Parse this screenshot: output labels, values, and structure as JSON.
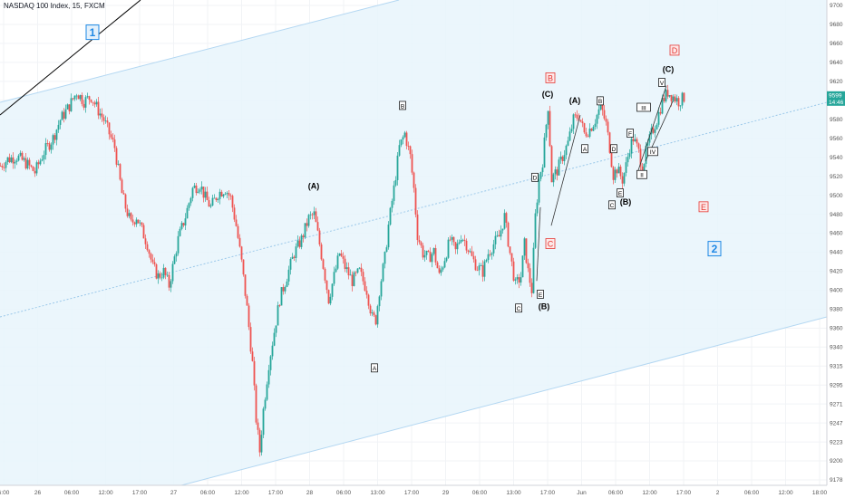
{
  "chart_data": {
    "type": "candlestick",
    "title": "NASDAQ 100 Index, 15, FXCM",
    "colors": {
      "up": "#26a69a",
      "down": "#ef5350",
      "wick_up": "#26a69a",
      "wick_down": "#ef5350",
      "channel_fill": "#e8f4fc",
      "channel_line": "#b3d7f2",
      "midline": "#9cc9ea",
      "trend_line": "#000000",
      "label_red": "#e53935",
      "label_blue": "#1e88e5",
      "price_tag": "#26a69a"
    },
    "ylim": [
      9178,
      9705
    ],
    "y_ticks": [
      "9700",
      "9680",
      "9660",
      "9640",
      "9620",
      "9600",
      "9580",
      "9560",
      "9540",
      "9520",
      "9500",
      "9480",
      "9460",
      "9440",
      "9420",
      "9400",
      "9380",
      "9360",
      "9340",
      "9315",
      "9295",
      "9271",
      "9247",
      "9223",
      "9200",
      "9178"
    ],
    "x_ticks": [
      "6:00",
      "26",
      "06:00",
      "12:00",
      "17:00",
      "27",
      "06:00",
      "12:00",
      "17:00",
      "28",
      "06:00",
      "13:00",
      "17:00",
      "29",
      "06:00",
      "13:00",
      "17:00",
      "Jun",
      "06:00",
      "12:00",
      "17:00",
      "2",
      "06:00",
      "12:00",
      "18:00"
    ],
    "price_tag": {
      "value": "9599",
      "time_left": "14:46"
    },
    "close_path": [
      [
        0,
        9525
      ],
      [
        8,
        9532
      ],
      [
        18,
        9535
      ],
      [
        28,
        9528
      ],
      [
        38,
        9518
      ],
      [
        48,
        9540
      ],
      [
        58,
        9555
      ],
      [
        66,
        9575
      ],
      [
        76,
        9590
      ],
      [
        84,
        9605
      ],
      [
        92,
        9595
      ],
      [
        100,
        9600
      ],
      [
        108,
        9585
      ],
      [
        114,
        9575
      ],
      [
        120,
        9560
      ],
      [
        126,
        9545
      ],
      [
        130,
        9520
      ],
      [
        134,
        9495
      ],
      [
        138,
        9480
      ],
      [
        144,
        9462
      ],
      [
        150,
        9470
      ],
      [
        156,
        9455
      ],
      [
        162,
        9440
      ],
      [
        168,
        9415
      ],
      [
        174,
        9405
      ],
      [
        180,
        9410
      ],
      [
        186,
        9395
      ],
      [
        190,
        9415
      ],
      [
        196,
        9445
      ],
      [
        204,
        9470
      ],
      [
        212,
        9500
      ],
      [
        220,
        9505
      ],
      [
        226,
        9490
      ],
      [
        232,
        9480
      ],
      [
        240,
        9495
      ],
      [
        248,
        9500
      ],
      [
        254,
        9490
      ],
      [
        260,
        9460
      ],
      [
        266,
        9420
      ],
      [
        272,
        9370
      ],
      [
        278,
        9310
      ],
      [
        282,
        9250
      ],
      [
        286,
        9215
      ],
      [
        290,
        9260
      ],
      [
        296,
        9310
      ],
      [
        302,
        9345
      ],
      [
        308,
        9380
      ],
      [
        316,
        9405
      ],
      [
        324,
        9430
      ],
      [
        332,
        9445
      ],
      [
        340,
        9468
      ],
      [
        346,
        9472
      ],
      [
        352,
        9440
      ],
      [
        358,
        9405
      ],
      [
        362,
        9380
      ],
      [
        368,
        9405
      ],
      [
        374,
        9430
      ],
      [
        380,
        9415
      ],
      [
        388,
        9400
      ],
      [
        396,
        9410
      ],
      [
        404,
        9390
      ],
      [
        410,
        9360
      ],
      [
        414,
        9358
      ],
      [
        418,
        9390
      ],
      [
        424,
        9425
      ],
      [
        428,
        9460
      ],
      [
        434,
        9500
      ],
      [
        440,
        9545
      ],
      [
        446,
        9560
      ],
      [
        452,
        9535
      ],
      [
        456,
        9500
      ],
      [
        460,
        9450
      ],
      [
        466,
        9430
      ],
      [
        472,
        9425
      ],
      [
        478,
        9432
      ],
      [
        484,
        9405
      ],
      [
        490,
        9425
      ],
      [
        496,
        9445
      ],
      [
        502,
        9432
      ],
      [
        508,
        9450
      ],
      [
        514,
        9440
      ],
      [
        520,
        9425
      ],
      [
        526,
        9415
      ],
      [
        532,
        9410
      ],
      [
        538,
        9430
      ],
      [
        544,
        9440
      ],
      [
        550,
        9448
      ],
      [
        556,
        9470
      ],
      [
        562,
        9430
      ],
      [
        568,
        9395
      ],
      [
        574,
        9405
      ],
      [
        578,
        9440
      ],
      [
        582,
        9410
      ],
      [
        586,
        9390
      ],
      [
        590,
        9470
      ],
      [
        594,
        9510
      ],
      [
        598,
        9530
      ],
      [
        604,
        9590
      ],
      [
        608,
        9510
      ],
      [
        614,
        9520
      ],
      [
        620,
        9535
      ],
      [
        626,
        9550
      ],
      [
        632,
        9575
      ],
      [
        638,
        9580
      ],
      [
        644,
        9560
      ],
      [
        650,
        9565
      ],
      [
        656,
        9575
      ],
      [
        662,
        9590
      ],
      [
        668,
        9570
      ],
      [
        672,
        9545
      ],
      [
        676,
        9515
      ],
      [
        680,
        9522
      ],
      [
        686,
        9510
      ],
      [
        690,
        9525
      ],
      [
        694,
        9545
      ],
      [
        698,
        9555
      ],
      [
        704,
        9540
      ],
      [
        708,
        9522
      ],
      [
        712,
        9540
      ],
      [
        718,
        9560
      ],
      [
        724,
        9575
      ],
      [
        730,
        9595
      ],
      [
        736,
        9605
      ],
      [
        742,
        9600
      ],
      [
        748,
        9595
      ],
      [
        754,
        9599
      ]
    ]
  },
  "annotations": {
    "wave_parens": [
      {
        "text": "(A)",
        "at": [
          346,
          9500
        ]
      },
      {
        "text": "(C)",
        "at": [
          604,
          9600
        ]
      },
      {
        "text": "(A)",
        "at": [
          634,
          9593
        ]
      },
      {
        "text": "(B)",
        "at": [
          690,
          9483
        ]
      },
      {
        "text": "(C)",
        "at": [
          737,
          9627
        ]
      },
      {
        "text": "(B)",
        "at": [
          600,
          9369
        ]
      }
    ],
    "wave_boxes": [
      {
        "text": "B",
        "at": [
          444,
          9590
        ]
      },
      {
        "text": "A",
        "at": [
          413,
          9305
        ]
      },
      {
        "text": "E",
        "at": [
          596,
          9385
        ]
      },
      {
        "text": "C",
        "at": [
          572,
          9370
        ]
      },
      {
        "text": "D",
        "at": [
          590,
          9512
        ]
      },
      {
        "text": "B",
        "at": [
          662,
          9595
        ]
      },
      {
        "text": "A",
        "at": [
          645,
          9543
        ]
      },
      {
        "text": "D",
        "at": [
          677,
          9543
        ]
      },
      {
        "text": "E",
        "at": [
          684,
          9495
        ]
      },
      {
        "text": "C",
        "at": [
          675,
          9482
        ]
      },
      {
        "text": "F",
        "at": [
          695,
          9560
        ]
      },
      {
        "text": "III",
        "at": [
          710,
          9588
        ]
      },
      {
        "text": "V",
        "at": [
          730,
          9615
        ]
      },
      {
        "text": "IV",
        "at": [
          720,
          9540
        ]
      },
      {
        "text": "II",
        "at": [
          708,
          9515
        ]
      }
    ],
    "red_boxes": [
      {
        "text": "B",
        "at": [
          607,
          9620
        ]
      },
      {
        "text": "C",
        "at": [
          607,
          9440
        ]
      },
      {
        "text": "D",
        "at": [
          744,
          9650
        ]
      },
      {
        "text": "E",
        "at": [
          776,
          9480
        ]
      }
    ],
    "blue_boxes": [
      {
        "text": "1",
        "at": [
          102,
          9670
        ]
      },
      {
        "text": "2",
        "at": [
          788,
          9435
        ]
      }
    ]
  }
}
